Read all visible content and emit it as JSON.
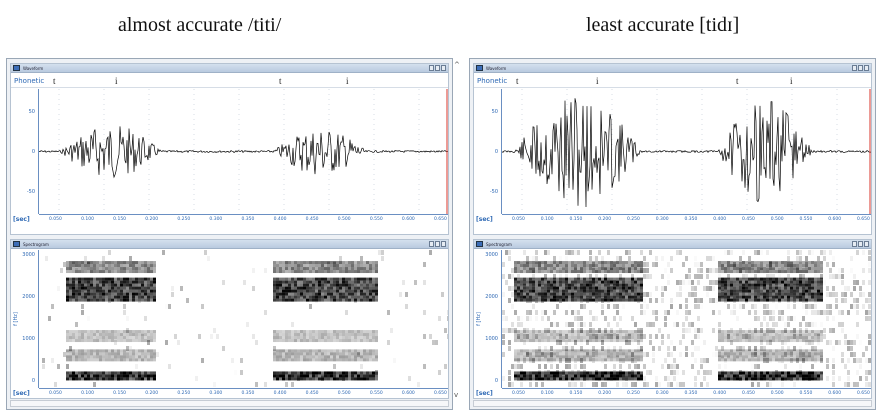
{
  "captions": {
    "left": "almost accurate /titi/",
    "right": "least accurate [tidɪ]"
  },
  "panels": [
    {
      "waveform": {
        "title": "Waveform",
        "tier_label": "Phonetic",
        "phones": [
          "t",
          "i",
          "t",
          "i"
        ],
        "y_ticks": [
          "50",
          "0",
          "-50"
        ],
        "x_unit": "[sec]",
        "x_ticks": [
          "0.050",
          "0.100",
          "0.150",
          "0.200",
          "0.250",
          "0.300",
          "0.350",
          "0.400",
          "0.450",
          "0.500",
          "0.550",
          "0.600",
          "0.650"
        ]
      },
      "spectrogram": {
        "title": "Spectrogram",
        "y_label": "f [Hz]",
        "y_ticks": [
          "3000",
          "2000",
          "1000",
          "0"
        ],
        "x_unit": "[sec]",
        "x_ticks": [
          "0.050",
          "0.100",
          "0.150",
          "0.200",
          "0.250",
          "0.300",
          "0.350",
          "0.400",
          "0.450",
          "0.500",
          "0.550",
          "0.600",
          "0.650"
        ]
      }
    },
    {
      "waveform": {
        "title": "Waveform",
        "tier_label": "Phonetic",
        "phones": [
          "t",
          "i",
          "t",
          "i"
        ],
        "y_ticks": [
          "50",
          "0",
          "-50"
        ],
        "x_unit": "[sec]",
        "x_ticks": [
          "0.050",
          "0.100",
          "0.150",
          "0.200",
          "0.250",
          "0.300",
          "0.350",
          "0.400",
          "0.450",
          "0.500",
          "0.550",
          "0.600",
          "0.650"
        ]
      },
      "spectrogram": {
        "title": "Spectrogram",
        "y_label": "f [Hz]",
        "y_ticks": [
          "3000",
          "2000",
          "1000",
          "0"
        ],
        "x_unit": "[sec]",
        "x_ticks": [
          "0.050",
          "0.100",
          "0.150",
          "0.200",
          "0.250",
          "0.300",
          "0.350",
          "0.400",
          "0.450",
          "0.500",
          "0.550",
          "0.600",
          "0.650"
        ]
      }
    }
  ],
  "colors": {
    "axis": "#2d68b4",
    "cursor": "#d9342b",
    "signal": "#000000"
  }
}
